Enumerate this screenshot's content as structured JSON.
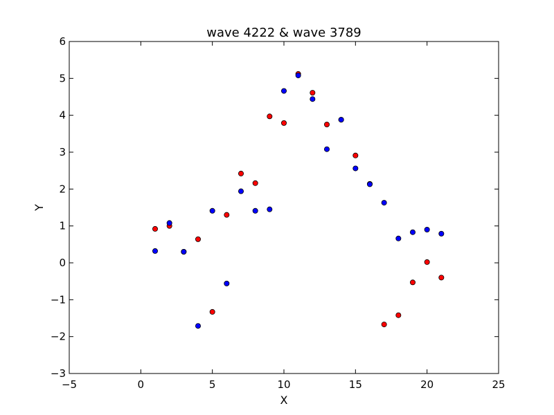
{
  "chart_data": {
    "type": "scatter",
    "title": "wave 4222 & wave 3789",
    "xlabel": "X",
    "ylabel": "Y",
    "xlim": [
      -5,
      25
    ],
    "ylim": [
      -3,
      6
    ],
    "xticks": [
      -5,
      0,
      5,
      10,
      15,
      20,
      25
    ],
    "yticks": [
      -3,
      -2,
      -1,
      0,
      1,
      2,
      3,
      4,
      5,
      6
    ],
    "grid": false,
    "series": [
      {
        "color": "#ff0000",
        "x": [
          1,
          2,
          3,
          4,
          5,
          6,
          7,
          8,
          9,
          10,
          11,
          12,
          13,
          14,
          15,
          16,
          17,
          18,
          19,
          20,
          21
        ],
        "y": [
          0.92,
          1.0,
          0.3,
          0.64,
          -1.33,
          1.3,
          2.42,
          2.16,
          3.97,
          3.79,
          5.12,
          4.61,
          3.75,
          3.88,
          2.91,
          2.14,
          -1.67,
          -1.42,
          -0.53,
          0.02,
          -0.4
        ]
      },
      {
        "color": "#0000ff",
        "x": [
          1,
          2,
          3,
          4,
          5,
          6,
          7,
          8,
          9,
          10,
          11,
          12,
          13,
          14,
          15,
          16,
          17,
          18,
          19,
          20,
          21
        ],
        "y": [
          0.32,
          1.08,
          0.3,
          -1.71,
          1.41,
          -0.56,
          1.94,
          1.41,
          1.45,
          4.66,
          5.08,
          4.44,
          3.08,
          3.88,
          2.56,
          2.13,
          1.63,
          0.66,
          0.83,
          0.9,
          0.79
        ]
      }
    ]
  }
}
